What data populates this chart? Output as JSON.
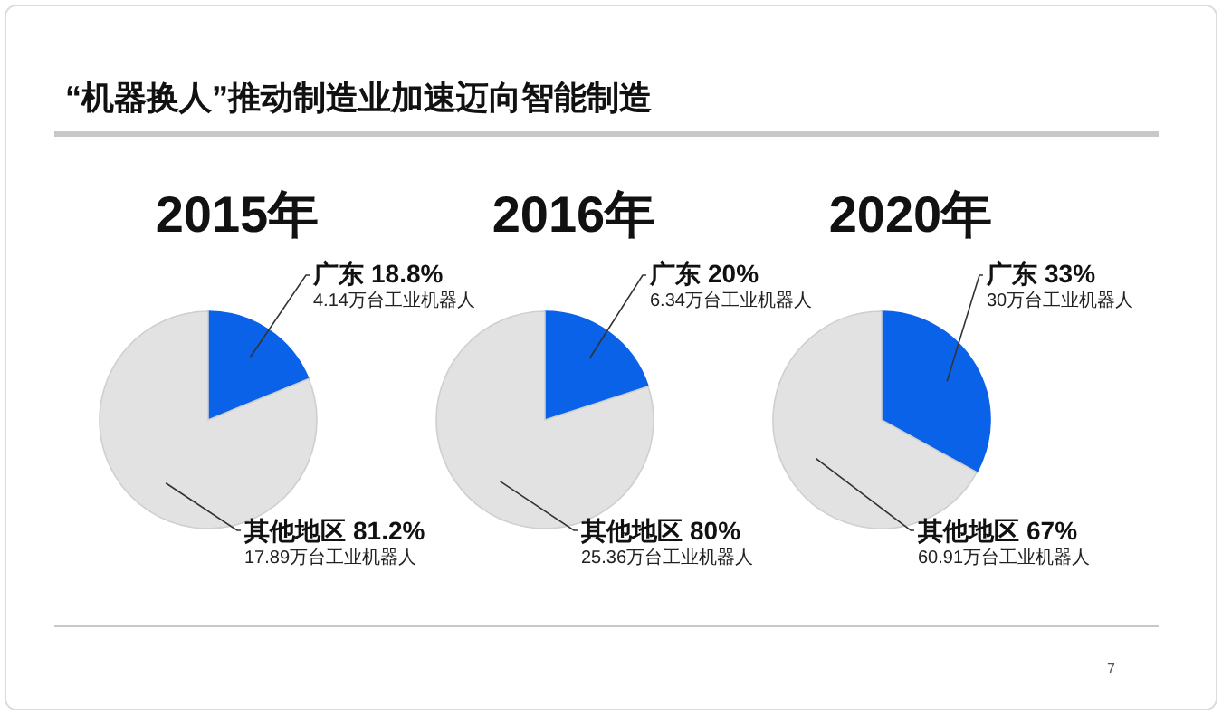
{
  "chart_data": [
    {
      "type": "other",
      "title": "“机器换人”推动制造业加速迈向智能制造",
      "annotations": [
        "7"
      ]
    },
    {
      "type": "pie",
      "title": "2015年",
      "categories": [
        "广东",
        "其他地区"
      ],
      "values": [
        18.8,
        81.2
      ],
      "value_labels": [
        "18.8%",
        "81.2%"
      ],
      "colors": [
        "#0a62e8",
        "#e2e2e2"
      ],
      "annotations": [
        "4.14万台工业机器人",
        "17.89万台工业机器人"
      ]
    },
    {
      "type": "pie",
      "title": "2016年",
      "categories": [
        "广东",
        "其他地区"
      ],
      "values": [
        20,
        80
      ],
      "value_labels": [
        "20%",
        "80%"
      ],
      "colors": [
        "#0a62e8",
        "#e2e2e2"
      ],
      "annotations": [
        "6.34万台工业机器人",
        "25.36万台工业机器人"
      ]
    },
    {
      "type": "pie",
      "title": "2020年",
      "categories": [
        "广东",
        "其他地区"
      ],
      "values": [
        33,
        67
      ],
      "value_labels": [
        "33%",
        "67%"
      ],
      "colors": [
        "#0a62e8",
        "#e2e2e2"
      ],
      "annotations": [
        "30万台工业机器人",
        "60.91万台工业机器人"
      ]
    }
  ]
}
